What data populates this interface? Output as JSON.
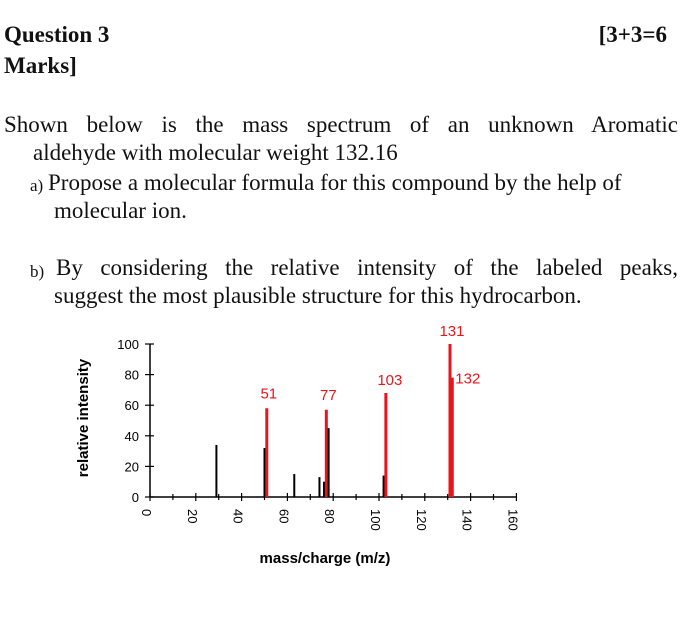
{
  "question": {
    "title": "Question 3",
    "marks_right": "[3+3=6",
    "marks_left": "Marks]",
    "stem_line1": "Shown below is the mass spectrum of an unknown Aromatic",
    "stem_line2": "aldehyde with molecular weight 132.16",
    "part_a_marker": "a)",
    "part_a_line1": "Propose a molecular formula for this compound by the help of",
    "part_a_line2": "molecular ion.",
    "part_b_marker": "b)",
    "part_b_line1": "By considering the relative intensity of the labeled peaks,",
    "part_b_line2": "suggest the most plausible structure for this hydrocarbon."
  },
  "chart_data": {
    "type": "bar",
    "xlabel": "mass/charge (m/z)",
    "ylabel": "relative intensity",
    "xlim": [
      0,
      160
    ],
    "ylim": [
      0,
      100
    ],
    "x_ticks": [
      "0",
      "20",
      "40",
      "60",
      "80",
      "100",
      "120",
      "140",
      "160"
    ],
    "y_ticks": [
      "0",
      "20",
      "40",
      "60",
      "80",
      "100"
    ],
    "colors": {
      "labeled": "#e8161b",
      "unlabeled": "#000000",
      "axis": "#000000"
    },
    "peaks": [
      {
        "mz": 29,
        "intensity": 34,
        "labeled": false,
        "label": ""
      },
      {
        "mz": 50,
        "intensity": 32,
        "labeled": false,
        "label": ""
      },
      {
        "mz": 51,
        "intensity": 58,
        "labeled": true,
        "label": "51"
      },
      {
        "mz": 63,
        "intensity": 15,
        "labeled": false,
        "label": ""
      },
      {
        "mz": 74,
        "intensity": 13,
        "labeled": false,
        "label": ""
      },
      {
        "mz": 76,
        "intensity": 10,
        "labeled": false,
        "label": ""
      },
      {
        "mz": 77,
        "intensity": 57,
        "labeled": true,
        "label": "77"
      },
      {
        "mz": 78,
        "intensity": 45,
        "labeled": false,
        "label": ""
      },
      {
        "mz": 102,
        "intensity": 14,
        "labeled": false,
        "label": ""
      },
      {
        "mz": 103,
        "intensity": 68,
        "labeled": true,
        "label": "103"
      },
      {
        "mz": 131,
        "intensity": 100,
        "labeled": true,
        "label": "131"
      },
      {
        "mz": 132,
        "intensity": 78,
        "labeled": true,
        "label": "132"
      }
    ]
  }
}
